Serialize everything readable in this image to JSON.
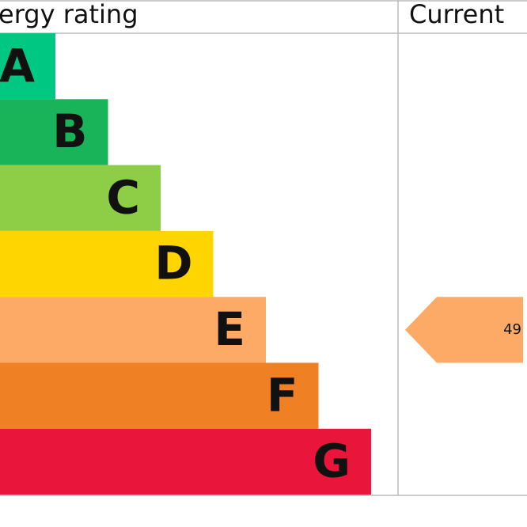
{
  "header": {
    "title": "ergy rating",
    "current": "Current"
  },
  "bands": [
    {
      "label": "A",
      "color": "#00c781"
    },
    {
      "label": "B",
      "color": "#19b459"
    },
    {
      "label": "C",
      "color": "#8dce46"
    },
    {
      "label": "D",
      "color": "#ffd500"
    },
    {
      "label": "E",
      "color": "#fcaa65"
    },
    {
      "label": "F",
      "color": "#ef8023"
    },
    {
      "label": "G",
      "color": "#e9153b"
    }
  ],
  "current": {
    "value": 49,
    "color": "#fcaa65"
  }
}
